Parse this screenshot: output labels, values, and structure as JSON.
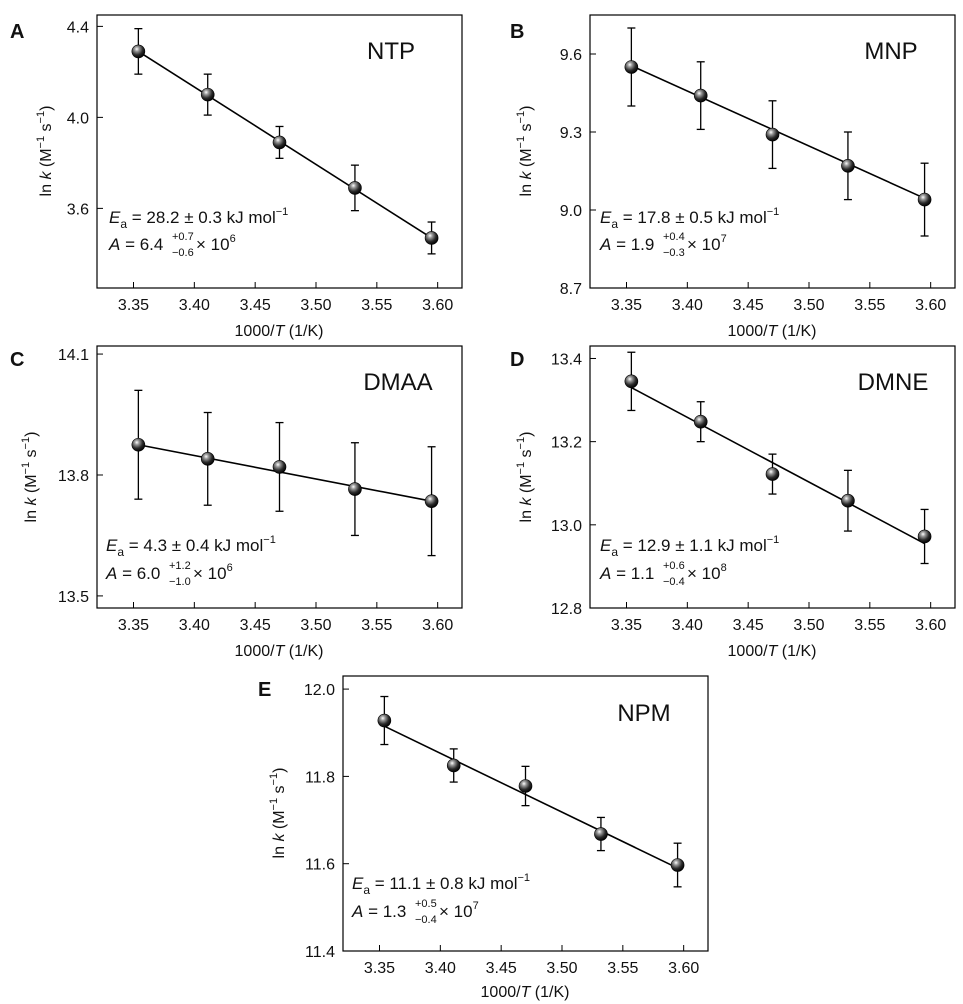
{
  "chart_data": [
    {
      "type": "scatter",
      "panel_letter": "A",
      "compound": "NTP",
      "xlabel_main": "1000/",
      "xlabel_var": "T",
      "xlabel_unit": " (1/K)",
      "ylabel_main": "ln ",
      "ylabel_var": "k",
      "ylabel_unit_open": " (M",
      "ylabel_exp1": "−1",
      "ylabel_mid": " s",
      "ylabel_exp2": "−1",
      "ylabel_close": ")",
      "xlim": [
        3.32,
        3.62
      ],
      "ylim": [
        3.25,
        4.45
      ],
      "xticks": [
        "3.35",
        "3.40",
        "3.45",
        "3.50",
        "3.55",
        "3.60"
      ],
      "yticks": [
        "3.6",
        "4.0",
        "4.4"
      ],
      "x": [
        3.354,
        3.411,
        3.47,
        3.532,
        3.595
      ],
      "y": [
        4.29,
        4.1,
        3.89,
        3.69,
        3.47
      ],
      "yerr": [
        0.1,
        0.09,
        0.07,
        0.1,
        0.07
      ],
      "fit": [
        [
          3.354,
          4.29
        ],
        [
          3.595,
          3.47
        ]
      ],
      "ea_sym": "E",
      "ea_sub": "a",
      "ea_text": " = 28.2 ± 0.3 kJ mol",
      "ea_exp": "−1",
      "a_sym": "A",
      "a_base": " = 6.4",
      "a_sup": "+0.7",
      "a_sub": "−0.6",
      "a_times": " × 10",
      "a_exp": "6"
    },
    {
      "type": "scatter",
      "panel_letter": "B",
      "compound": "MNP",
      "xlabel_main": "1000/",
      "xlabel_var": "T",
      "xlabel_unit": " (1/K)",
      "ylabel_main": "ln ",
      "ylabel_var": "k",
      "ylabel_unit_open": " (M",
      "ylabel_exp1": "−1",
      "ylabel_mid": " s",
      "ylabel_exp2": "−1",
      "ylabel_close": ")",
      "xlim": [
        3.32,
        3.62
      ],
      "ylim": [
        8.7,
        9.75
      ],
      "xticks": [
        "3.35",
        "3.40",
        "3.45",
        "3.50",
        "3.55",
        "3.60"
      ],
      "yticks": [
        "8.7",
        "9.0",
        "9.3",
        "9.6"
      ],
      "x": [
        3.354,
        3.411,
        3.47,
        3.532,
        3.595
      ],
      "y": [
        9.55,
        9.44,
        9.29,
        9.17,
        9.04
      ],
      "yerr": [
        0.15,
        0.13,
        0.13,
        0.13,
        0.14
      ],
      "fit": [
        [
          3.354,
          9.555
        ],
        [
          3.595,
          9.045
        ]
      ],
      "ea_sym": "E",
      "ea_sub": "a",
      "ea_text": " = 17.8 ± 0.5 kJ mol",
      "ea_exp": "−1",
      "a_sym": "A",
      "a_base": " = 1.9",
      "a_sup": "+0.4",
      "a_sub": "−0.3",
      "a_times": " × 10",
      "a_exp": "7"
    },
    {
      "type": "scatter",
      "panel_letter": "C",
      "compound": "DMAA",
      "xlabel_main": "1000/",
      "xlabel_var": "T",
      "xlabel_unit": " (1/K)",
      "ylabel_main": "ln ",
      "ylabel_var": "k",
      "ylabel_unit_open": " (M",
      "ylabel_exp1": "−1",
      "ylabel_mid": " s",
      "ylabel_exp2": "−1",
      "ylabel_close": ")",
      "xlim": [
        3.32,
        3.62
      ],
      "ylim": [
        13.47,
        14.12
      ],
      "xticks": [
        "3.35",
        "3.40",
        "3.45",
        "3.50",
        "3.55",
        "3.60"
      ],
      "yticks": [
        "13.5",
        "13.8",
        "14.1"
      ],
      "x": [
        3.354,
        3.411,
        3.47,
        3.532,
        3.595
      ],
      "y": [
        13.875,
        13.84,
        13.82,
        13.765,
        13.735
      ],
      "yerr": [
        0.135,
        0.115,
        0.11,
        0.115,
        0.135
      ],
      "fit": [
        [
          3.354,
          13.875
        ],
        [
          3.595,
          13.735
        ]
      ],
      "ea_sym": "E",
      "ea_sub": "a",
      "ea_text": " = 4.3 ± 0.4 kJ mol",
      "ea_exp": "−1",
      "a_sym": "A",
      "a_base": " = 6.0",
      "a_sup": "+1.2",
      "a_sub": "−1.0",
      "a_times": " × 10",
      "a_exp": "6"
    },
    {
      "type": "scatter",
      "panel_letter": "D",
      "compound": "DMNE",
      "xlabel_main": "1000/",
      "xlabel_var": "T",
      "xlabel_unit": " (1/K)",
      "ylabel_main": "ln ",
      "ylabel_var": "k",
      "ylabel_unit_open": " (M",
      "ylabel_exp1": "−1",
      "ylabel_mid": " s",
      "ylabel_exp2": "−1",
      "ylabel_close": ")",
      "xlim": [
        3.32,
        3.62
      ],
      "ylim": [
        12.8,
        13.43
      ],
      "xticks": [
        "3.35",
        "3.40",
        "3.45",
        "3.50",
        "3.55",
        "3.60"
      ],
      "yticks": [
        "12.8",
        "13.0",
        "13.2",
        "13.4"
      ],
      "x": [
        3.354,
        3.411,
        3.47,
        3.532,
        3.595
      ],
      "y": [
        13.345,
        13.248,
        13.122,
        13.058,
        12.972
      ],
      "yerr": [
        0.07,
        0.048,
        0.048,
        0.073,
        0.065
      ],
      "fit": [
        [
          3.354,
          13.33
        ],
        [
          3.595,
          12.955
        ]
      ],
      "ea_sym": "E",
      "ea_sub": "a",
      "ea_text": " = 12.9 ± 1.1 kJ mol",
      "ea_exp": "−1",
      "a_sym": "A",
      "a_base": " = 1.1",
      "a_sup": "+0.6",
      "a_sub": "−0.4",
      "a_times": " × 10",
      "a_exp": "8"
    },
    {
      "type": "scatter",
      "panel_letter": "E",
      "compound": "NPM",
      "xlabel_main": "1000/",
      "xlabel_var": "T",
      "xlabel_unit": " (1/K)",
      "ylabel_main": "ln ",
      "ylabel_var": "k",
      "ylabel_unit_open": " (M",
      "ylabel_exp1": "−1",
      "ylabel_mid": " s",
      "ylabel_exp2": "−1",
      "ylabel_close": ")",
      "xlim": [
        3.32,
        3.62
      ],
      "ylim": [
        11.4,
        12.03
      ],
      "xticks": [
        "3.35",
        "3.40",
        "3.45",
        "3.50",
        "3.55",
        "3.60"
      ],
      "yticks": [
        "11.4",
        "11.6",
        "11.8",
        "12.0"
      ],
      "x": [
        3.354,
        3.411,
        3.47,
        3.532,
        3.595
      ],
      "y": [
        11.928,
        11.825,
        11.778,
        11.668,
        11.597
      ],
      "yerr": [
        0.055,
        0.038,
        0.045,
        0.038,
        0.05
      ],
      "fit": [
        [
          3.354,
          11.915
        ],
        [
          3.595,
          11.59
        ]
      ],
      "ea_sym": "E",
      "ea_sub": "a",
      "ea_text": " = 11.1 ± 0.8 kJ mol",
      "ea_exp": "−1",
      "a_sym": "A",
      "a_base": " = 1.3",
      "a_sup": "+0.5",
      "a_sub": "−0.4",
      "a_times": " × 10",
      "a_exp": "7"
    }
  ]
}
